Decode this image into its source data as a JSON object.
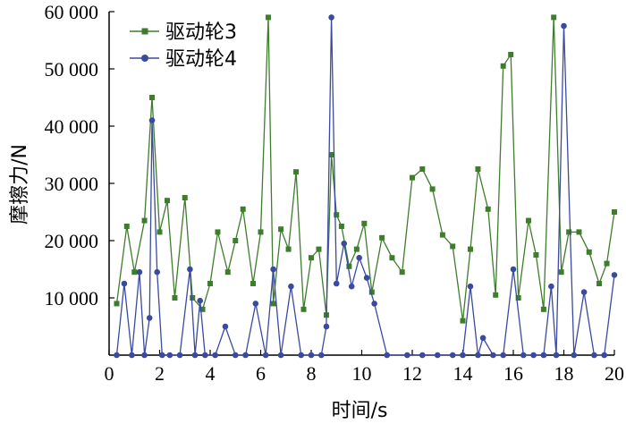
{
  "chart_data": {
    "type": "line",
    "xlabel": "时间/s",
    "ylabel": "摩擦力/N",
    "xlim": [
      0,
      20
    ],
    "ylim": [
      0,
      60000
    ],
    "x_ticks": [
      0,
      2,
      4,
      6,
      8,
      10,
      12,
      14,
      16,
      18,
      20
    ],
    "x_tick_labels": [
      "0",
      "2",
      "4",
      "6",
      "8",
      "10",
      "12",
      "14",
      "16",
      "18",
      "20"
    ],
    "y_ticks": [
      10000,
      20000,
      30000,
      40000,
      50000,
      60000
    ],
    "y_tick_labels": [
      "10 000",
      "20 000",
      "30 000",
      "40 000",
      "50 000",
      "60 000"
    ],
    "grid": false,
    "legend_position": "top-left",
    "series": [
      {
        "name": "驱动轮3",
        "color": "#3e7d2c",
        "marker": "square",
        "x": [
          0.3,
          0.7,
          1.0,
          1.4,
          1.7,
          2.0,
          2.3,
          2.6,
          3.0,
          3.3,
          3.7,
          4.0,
          4.3,
          4.7,
          5.0,
          5.3,
          5.7,
          6.0,
          6.3,
          6.5,
          6.8,
          7.1,
          7.4,
          7.7,
          8.0,
          8.3,
          8.6,
          8.8,
          9.0,
          9.2,
          9.5,
          9.8,
          10.1,
          10.4,
          10.8,
          11.2,
          11.6,
          12.0,
          12.4,
          12.8,
          13.2,
          13.6,
          14.0,
          14.3,
          14.6,
          15.0,
          15.3,
          15.6,
          15.9,
          16.2,
          16.6,
          16.9,
          17.2,
          17.6,
          17.9,
          18.2,
          18.6,
          19.0,
          19.4,
          19.7,
          20.0
        ],
        "values": [
          9000,
          22500,
          14500,
          23500,
          45000,
          21500,
          27000,
          10000,
          27500,
          10000,
          8000,
          12500,
          21500,
          14500,
          20000,
          25500,
          12500,
          21500,
          59000,
          9000,
          22000,
          18500,
          32000,
          8000,
          17000,
          18500,
          7000,
          35000,
          24500,
          22500,
          15500,
          18500,
          23000,
          11000,
          20500,
          17000,
          14500,
          31000,
          32500,
          29000,
          21000,
          19000,
          6000,
          18500,
          32500,
          25500,
          10500,
          50500,
          52500,
          10000,
          23500,
          17500,
          8000,
          59000,
          14500,
          21500,
          21500,
          18000,
          12500,
          16000,
          25000
        ]
      },
      {
        "name": "驱动轮4",
        "color": "#3a4a9e",
        "marker": "circle",
        "x": [
          0.3,
          0.6,
          0.9,
          1.2,
          1.4,
          1.6,
          1.7,
          1.9,
          2.1,
          2.4,
          2.8,
          3.2,
          3.4,
          3.6,
          3.8,
          4.2,
          4.6,
          5.0,
          5.4,
          5.8,
          6.2,
          6.5,
          6.8,
          7.2,
          7.6,
          8.0,
          8.4,
          8.6,
          8.8,
          9.0,
          9.3,
          9.6,
          9.9,
          10.2,
          10.5,
          11.0,
          11.8,
          12.4,
          13.0,
          13.6,
          14.0,
          14.3,
          14.6,
          14.8,
          15.2,
          15.6,
          16.0,
          16.4,
          16.8,
          17.2,
          17.5,
          17.7,
          18.0,
          18.4,
          18.8,
          19.2,
          19.6,
          20.0
        ],
        "values": [
          0,
          12500,
          0,
          14500,
          0,
          6500,
          41000,
          14500,
          0,
          0,
          0,
          15000,
          0,
          9500,
          0,
          0,
          5000,
          0,
          0,
          9000,
          0,
          15000,
          0,
          12000,
          0,
          0,
          0,
          5000,
          59000,
          12500,
          19500,
          12000,
          17000,
          13500,
          9000,
          0,
          0,
          0,
          0,
          0,
          0,
          12000,
          0,
          3000,
          0,
          0,
          15000,
          0,
          0,
          0,
          12000,
          0,
          57500,
          0,
          11000,
          0,
          0,
          14000
        ]
      }
    ]
  }
}
